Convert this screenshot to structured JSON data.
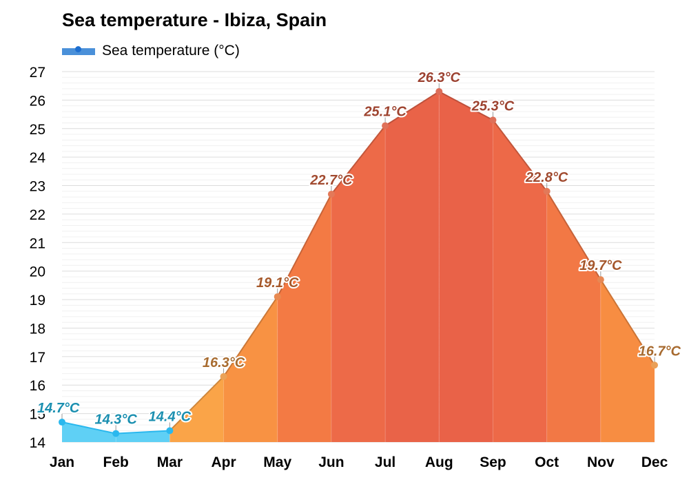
{
  "chart_data": {
    "type": "area",
    "title": "Sea temperature - Ibiza, Spain",
    "categories": [
      "Jan",
      "Feb",
      "Mar",
      "Apr",
      "May",
      "Jun",
      "Jul",
      "Aug",
      "Sep",
      "Oct",
      "Nov",
      "Dec"
    ],
    "series": [
      {
        "name": "Sea temperature (°C)",
        "values": [
          14.7,
          14.3,
          14.4,
          16.3,
          19.1,
          22.7,
          25.1,
          26.3,
          25.3,
          22.8,
          19.7,
          16.7
        ],
        "labels": [
          "14.7°C",
          "14.3°C",
          "14.4°C",
          "16.3°C",
          "19.1°C",
          "22.7°C",
          "25.1°C",
          "26.3°C",
          "25.3°C",
          "22.8°C",
          "19.7°C",
          "16.7°C"
        ]
      }
    ],
    "ylim": [
      14,
      27
    ],
    "yticks": [
      "14",
      "15",
      "16",
      "17",
      "18",
      "19",
      "20",
      "21",
      "22",
      "23",
      "24",
      "25",
      "26",
      "27"
    ],
    "grid": true,
    "legend_position": "top-left",
    "colors": {
      "cold_fill": "#5fd0f5",
      "cold_line": "#2ab8ee",
      "cold_label": "#1a8fb0",
      "legend": "#4a90d9"
    }
  }
}
